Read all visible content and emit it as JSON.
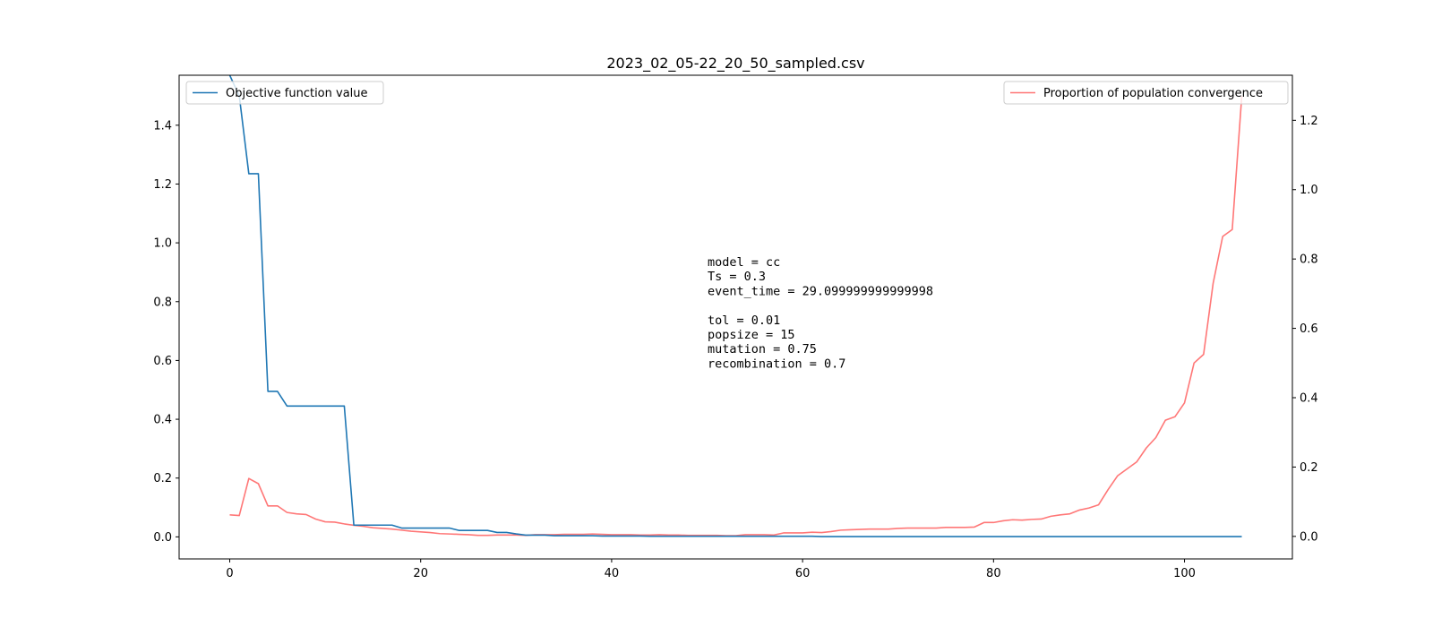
{
  "chart_data": {
    "type": "line",
    "title": "2023_02_05-22_20_50_sampled.csv",
    "xlabel": "",
    "ylabel": "",
    "xlim": [
      -5.3,
      111.3
    ],
    "ylim_left": [
      -0.075,
      1.57
    ],
    "ylim_right": [
      -0.065,
      1.33
    ],
    "x_ticks": [
      0,
      20,
      40,
      60,
      80,
      100
    ],
    "y_ticks_left": [
      0.0,
      0.2,
      0.4,
      0.6,
      0.8,
      1.0,
      1.2,
      1.4
    ],
    "y_ticks_right": [
      0.0,
      0.2,
      0.4,
      0.6,
      0.8,
      1.0,
      1.2
    ],
    "grid": false,
    "series": [
      {
        "name": "Objective function value",
        "axis": "left",
        "color": "#1f77b4",
        "x": [
          0,
          1,
          2,
          3,
          4,
          5,
          6,
          7,
          8,
          9,
          10,
          11,
          12,
          13,
          14,
          15,
          16,
          17,
          18,
          19,
          20,
          21,
          22,
          23,
          24,
          25,
          26,
          27,
          28,
          29,
          30,
          31,
          32,
          33,
          34,
          35,
          36,
          37,
          38,
          39,
          40,
          41,
          42,
          43,
          44,
          45,
          46,
          47,
          48,
          49,
          50,
          51,
          52,
          53,
          54,
          55,
          56,
          57,
          58,
          59,
          60,
          61,
          62,
          63,
          64,
          65,
          66,
          67,
          68,
          69,
          70,
          71,
          72,
          73,
          74,
          75,
          76,
          77,
          78,
          79,
          80,
          81,
          82,
          83,
          84,
          85,
          86,
          87,
          88,
          89,
          90,
          91,
          92,
          93,
          94,
          95,
          96,
          97,
          98,
          99,
          100,
          101,
          102,
          103,
          104,
          105,
          106
        ],
        "values": [
          1.57,
          1.5,
          1.235,
          1.235,
          0.495,
          0.495,
          0.445,
          0.445,
          0.445,
          0.445,
          0.445,
          0.445,
          0.445,
          0.04,
          0.04,
          0.04,
          0.04,
          0.04,
          0.03,
          0.03,
          0.03,
          0.03,
          0.03,
          0.03,
          0.022,
          0.022,
          0.022,
          0.022,
          0.015,
          0.015,
          0.01,
          0.006,
          0.006,
          0.006,
          0.004,
          0.004,
          0.004,
          0.004,
          0.004,
          0.003,
          0.003,
          0.003,
          0.003,
          0.003,
          0.002,
          0.002,
          0.002,
          0.002,
          0.002,
          0.002,
          0.002,
          0.002,
          0.002,
          0.002,
          0.002,
          0.002,
          0.002,
          0.002,
          0.002,
          0.002,
          0.002,
          0.002,
          0.001,
          0.001,
          0.001,
          0.001,
          0.001,
          0.001,
          0.001,
          0.001,
          0.001,
          0.001,
          0.001,
          0.001,
          0.001,
          0.001,
          0.001,
          0.001,
          0.001,
          0.001,
          0.001,
          0.001,
          0.001,
          0.001,
          0.001,
          0.001,
          0.001,
          0.001,
          0.001,
          0.001,
          0.001,
          0.001,
          0.001,
          0.001,
          0.001,
          0.001,
          0.001,
          0.001,
          0.001,
          0.001,
          0.001,
          0.001,
          0.001,
          0.001,
          0.001,
          0.001,
          0.001
        ]
      },
      {
        "name": "Proportion of population convergence",
        "axis": "right",
        "color": "#ff7777",
        "x": [
          0,
          1,
          2,
          3,
          4,
          5,
          6,
          7,
          8,
          9,
          10,
          11,
          12,
          13,
          14,
          15,
          16,
          17,
          18,
          19,
          20,
          21,
          22,
          23,
          24,
          25,
          26,
          27,
          28,
          29,
          30,
          31,
          32,
          33,
          34,
          35,
          36,
          37,
          38,
          39,
          40,
          41,
          42,
          43,
          44,
          45,
          46,
          47,
          48,
          49,
          50,
          51,
          52,
          53,
          54,
          55,
          56,
          57,
          58,
          59,
          60,
          61,
          62,
          63,
          64,
          65,
          66,
          67,
          68,
          69,
          70,
          71,
          72,
          73,
          74,
          75,
          76,
          77,
          78,
          79,
          80,
          81,
          82,
          83,
          84,
          85,
          86,
          87,
          88,
          89,
          90,
          91,
          92,
          93,
          94,
          95,
          96,
          97,
          98,
          99,
          100,
          101,
          102,
          103,
          104,
          105,
          106
        ],
        "values": [
          0.062,
          0.06,
          0.167,
          0.152,
          0.088,
          0.088,
          0.069,
          0.065,
          0.063,
          0.05,
          0.042,
          0.041,
          0.036,
          0.032,
          0.029,
          0.025,
          0.023,
          0.021,
          0.018,
          0.015,
          0.013,
          0.011,
          0.008,
          0.007,
          0.006,
          0.005,
          0.003,
          0.003,
          0.004,
          0.004,
          0.004,
          0.003,
          0.005,
          0.005,
          0.005,
          0.006,
          0.006,
          0.006,
          0.007,
          0.006,
          0.005,
          0.005,
          0.005,
          0.004,
          0.004,
          0.005,
          0.004,
          0.004,
          0.003,
          0.003,
          0.003,
          0.003,
          0.002,
          0.002,
          0.005,
          0.005,
          0.005,
          0.004,
          0.01,
          0.01,
          0.01,
          0.012,
          0.011,
          0.014,
          0.018,
          0.019,
          0.02,
          0.021,
          0.021,
          0.021,
          0.023,
          0.024,
          0.024,
          0.024,
          0.024,
          0.026,
          0.026,
          0.026,
          0.027,
          0.04,
          0.04,
          0.045,
          0.048,
          0.047,
          0.049,
          0.05,
          0.058,
          0.062,
          0.065,
          0.076,
          0.082,
          0.091,
          0.135,
          0.175,
          0.195,
          0.215,
          0.255,
          0.285,
          0.335,
          0.345,
          0.385,
          0.5,
          0.525,
          0.73,
          0.865,
          0.885,
          1.27
        ]
      }
    ],
    "legends": [
      {
        "label": "Objective function value",
        "placement": "upper-left"
      },
      {
        "label": "Proportion of population convergence",
        "placement": "upper-right"
      }
    ],
    "annotation_lines": [
      "model = cc",
      "Ts = 0.3",
      "event_time = 29.099999999999998",
      "",
      "tol = 0.01",
      "popsize = 15",
      "mutation = 0.75",
      "recombination = 0.7"
    ]
  }
}
